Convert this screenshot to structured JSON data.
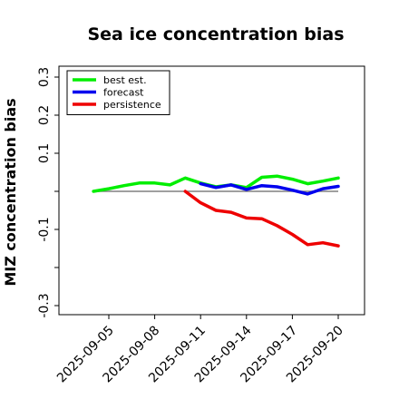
{
  "chart_data": {
    "type": "line",
    "title": "Sea ice concentration bias",
    "xlabel": "",
    "ylabel": "MIZ concentration bias",
    "ylim": [
      -0.32,
      0.33
    ],
    "yticks": [
      {
        "value": 0.3,
        "label": "0.3"
      },
      {
        "value": 0.2,
        "label": "0.2"
      },
      {
        "value": 0.1,
        "label": "0.1"
      },
      {
        "value": -0.1,
        "label": "-0.1"
      },
      {
        "value": -0.3,
        "label": "-0.3"
      }
    ],
    "yminor_ticks": [
      0.0,
      -0.2
    ],
    "xlim": [
      "2025-09-02",
      "2025-09-21"
    ],
    "xticks": [
      {
        "date": "2025-09-05",
        "label": "2025-09-05",
        "color": "#000000"
      },
      {
        "date": "2025-09-08",
        "label": "2025-09-08",
        "color": "#000000"
      },
      {
        "date": "2025-09-11",
        "label": "2025-09-11",
        "color": "#1f7f1f"
      },
      {
        "date": "2025-09-14",
        "label": "2025-09-14",
        "color": "#000000"
      },
      {
        "date": "2025-09-17",
        "label": "2025-09-17",
        "color": "#000000"
      },
      {
        "date": "2025-09-20",
        "label": "2025-09-20",
        "color": "#000000"
      }
    ],
    "reference_line": {
      "y": 0.0,
      "color": "#808080"
    },
    "legend": {
      "position": "top-left"
    },
    "series": [
      {
        "name": "best est.",
        "color": "#00ee00",
        "x": [
          "2025-09-04",
          "2025-09-05",
          "2025-09-06",
          "2025-09-07",
          "2025-09-08",
          "2025-09-09",
          "2025-09-10",
          "2025-09-11",
          "2025-09-12",
          "2025-09-13",
          "2025-09-14",
          "2025-09-15",
          "2025-09-16",
          "2025-09-17",
          "2025-09-18",
          "2025-09-19",
          "2025-09-20"
        ],
        "values": [
          0.0,
          0.007,
          0.015,
          0.022,
          0.022,
          0.017,
          0.035,
          0.022,
          0.012,
          0.017,
          0.01,
          0.037,
          0.04,
          0.032,
          0.02,
          0.027,
          0.035
        ]
      },
      {
        "name": "forecast",
        "color": "#0000ee",
        "x": [
          "2025-09-11",
          "2025-09-12",
          "2025-09-13",
          "2025-09-14",
          "2025-09-15",
          "2025-09-16",
          "2025-09-17",
          "2025-09-18",
          "2025-09-19",
          "2025-09-20"
        ],
        "values": [
          0.02,
          0.01,
          0.017,
          0.005,
          0.015,
          0.012,
          0.003,
          -0.007,
          0.007,
          0.013
        ]
      },
      {
        "name": "persistence",
        "color": "#ee0000",
        "x": [
          "2025-09-10",
          "2025-09-11",
          "2025-09-12",
          "2025-09-13",
          "2025-09-14",
          "2025-09-15",
          "2025-09-16",
          "2025-09-17",
          "2025-09-18",
          "2025-09-19",
          "2025-09-20"
        ],
        "values": [
          0.0,
          -0.03,
          -0.05,
          -0.055,
          -0.07,
          -0.072,
          -0.09,
          -0.113,
          -0.14,
          -0.135,
          -0.143
        ]
      }
    ]
  }
}
